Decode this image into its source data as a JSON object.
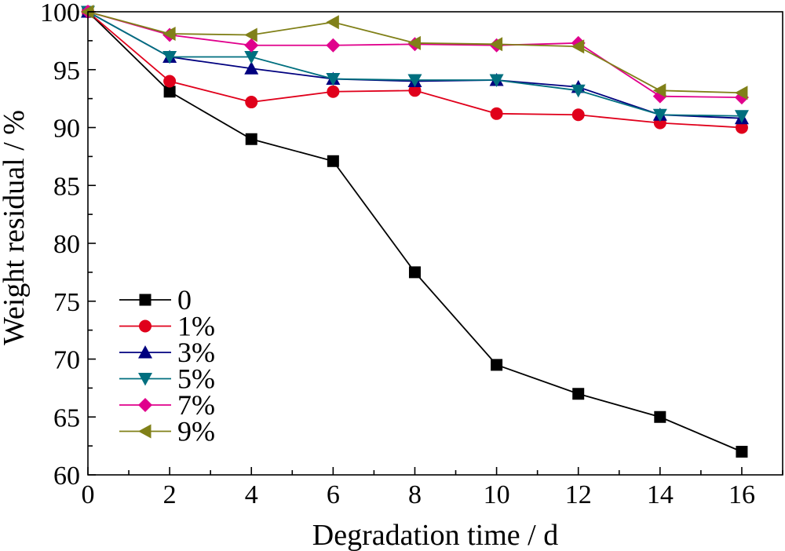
{
  "chart_data": {
    "type": "line",
    "xlabel": "Degradation time / d",
    "ylabel": "Weight residual / %",
    "xlim": [
      0,
      17
    ],
    "ylim": [
      60,
      100
    ],
    "xticks": [
      0,
      2,
      4,
      6,
      8,
      10,
      12,
      14,
      16
    ],
    "yticks": [
      60,
      65,
      70,
      75,
      80,
      85,
      90,
      95,
      100
    ],
    "x": [
      0,
      2,
      4,
      6,
      8,
      10,
      12,
      14,
      16
    ],
    "legend_position": "bottom-left",
    "grid": false,
    "series": [
      {
        "name": "0",
        "marker": "square",
        "color": "#000000",
        "values": [
          100,
          93.1,
          89.0,
          87.1,
          77.5,
          69.5,
          67.0,
          65.0,
          62.0
        ]
      },
      {
        "name": "1%",
        "marker": "circle",
        "color": "#e0001b",
        "values": [
          100,
          94.0,
          92.2,
          93.1,
          93.2,
          91.2,
          91.1,
          90.4,
          90.0
        ]
      },
      {
        "name": "3%",
        "marker": "triangle-up",
        "color": "#00007f",
        "values": [
          100,
          96.1,
          95.1,
          94.2,
          94.0,
          94.1,
          93.5,
          91.1,
          90.8
        ]
      },
      {
        "name": "5%",
        "marker": "triangle-down",
        "color": "#006f7f",
        "values": [
          100,
          96.1,
          96.1,
          94.2,
          94.1,
          94.1,
          93.2,
          91.1,
          91.0
        ]
      },
      {
        "name": "7%",
        "marker": "diamond",
        "color": "#e0008c",
        "values": [
          100,
          98.0,
          97.1,
          97.1,
          97.2,
          97.1,
          97.3,
          92.7,
          92.6
        ]
      },
      {
        "name": "9%",
        "marker": "triangle-left",
        "color": "#808018",
        "values": [
          100,
          98.1,
          98.0,
          99.1,
          97.3,
          97.2,
          97.0,
          93.2,
          93.0
        ]
      }
    ]
  }
}
